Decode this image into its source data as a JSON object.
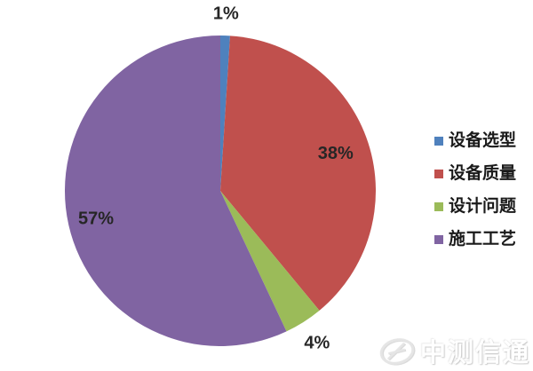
{
  "chart_data": {
    "type": "pie",
    "title": "",
    "categories": [
      "设备选型",
      "设备质量",
      "设计问题",
      "施工工艺"
    ],
    "values": [
      1,
      38,
      4,
      57
    ],
    "unit": "%",
    "slice_labels": [
      "1%",
      "38%",
      "4%",
      "57%"
    ],
    "colors": [
      "#4F81BD",
      "#C0504D",
      "#9BBB59",
      "#8064A2"
    ],
    "start_angle_deg": 0,
    "direction": "clockwise",
    "legend_position": "right",
    "legend_entries": [
      "设备选型",
      "设备质量",
      "设计问题",
      "施工工艺"
    ],
    "slice_label_color": "#262626",
    "background_color": "#FFFFFF"
  },
  "watermark": {
    "text": "中测信通"
  }
}
